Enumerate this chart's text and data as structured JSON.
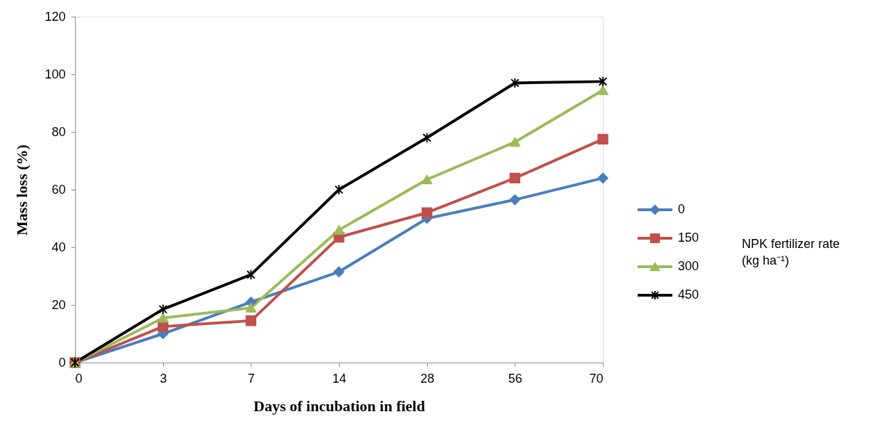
{
  "chart_data": {
    "type": "line",
    "xlabel": "Days of incubation in field",
    "ylabel": "Mass loss (%)",
    "legend_title": "NPK fertilizer rate (kg ha⁻¹)",
    "categories": [
      "0",
      "3",
      "7",
      "14",
      "28",
      "56",
      "70"
    ],
    "series": [
      {
        "name": "0",
        "color": "#4a7ebb",
        "marker": "diamond",
        "values": [
          0,
          10,
          21,
          31.5,
          50,
          56.5,
          64
        ]
      },
      {
        "name": "150",
        "color": "#c0504d",
        "marker": "square",
        "values": [
          0,
          12.5,
          14.5,
          43.5,
          52,
          64,
          77.5
        ]
      },
      {
        "name": "300",
        "color": "#9bbb59",
        "marker": "triangle",
        "values": [
          0,
          15.5,
          19,
          46,
          63.5,
          76.5,
          94.5
        ]
      },
      {
        "name": "450",
        "color": "#000000",
        "marker": "cross",
        "values": [
          0,
          18.5,
          30.5,
          60,
          78,
          97,
          97.5
        ]
      }
    ],
    "ylim": [
      0,
      120
    ],
    "yticks": [
      0,
      20,
      40,
      60,
      80,
      100,
      120
    ],
    "grid": false,
    "legend": "right",
    "line_style": "solid"
  }
}
